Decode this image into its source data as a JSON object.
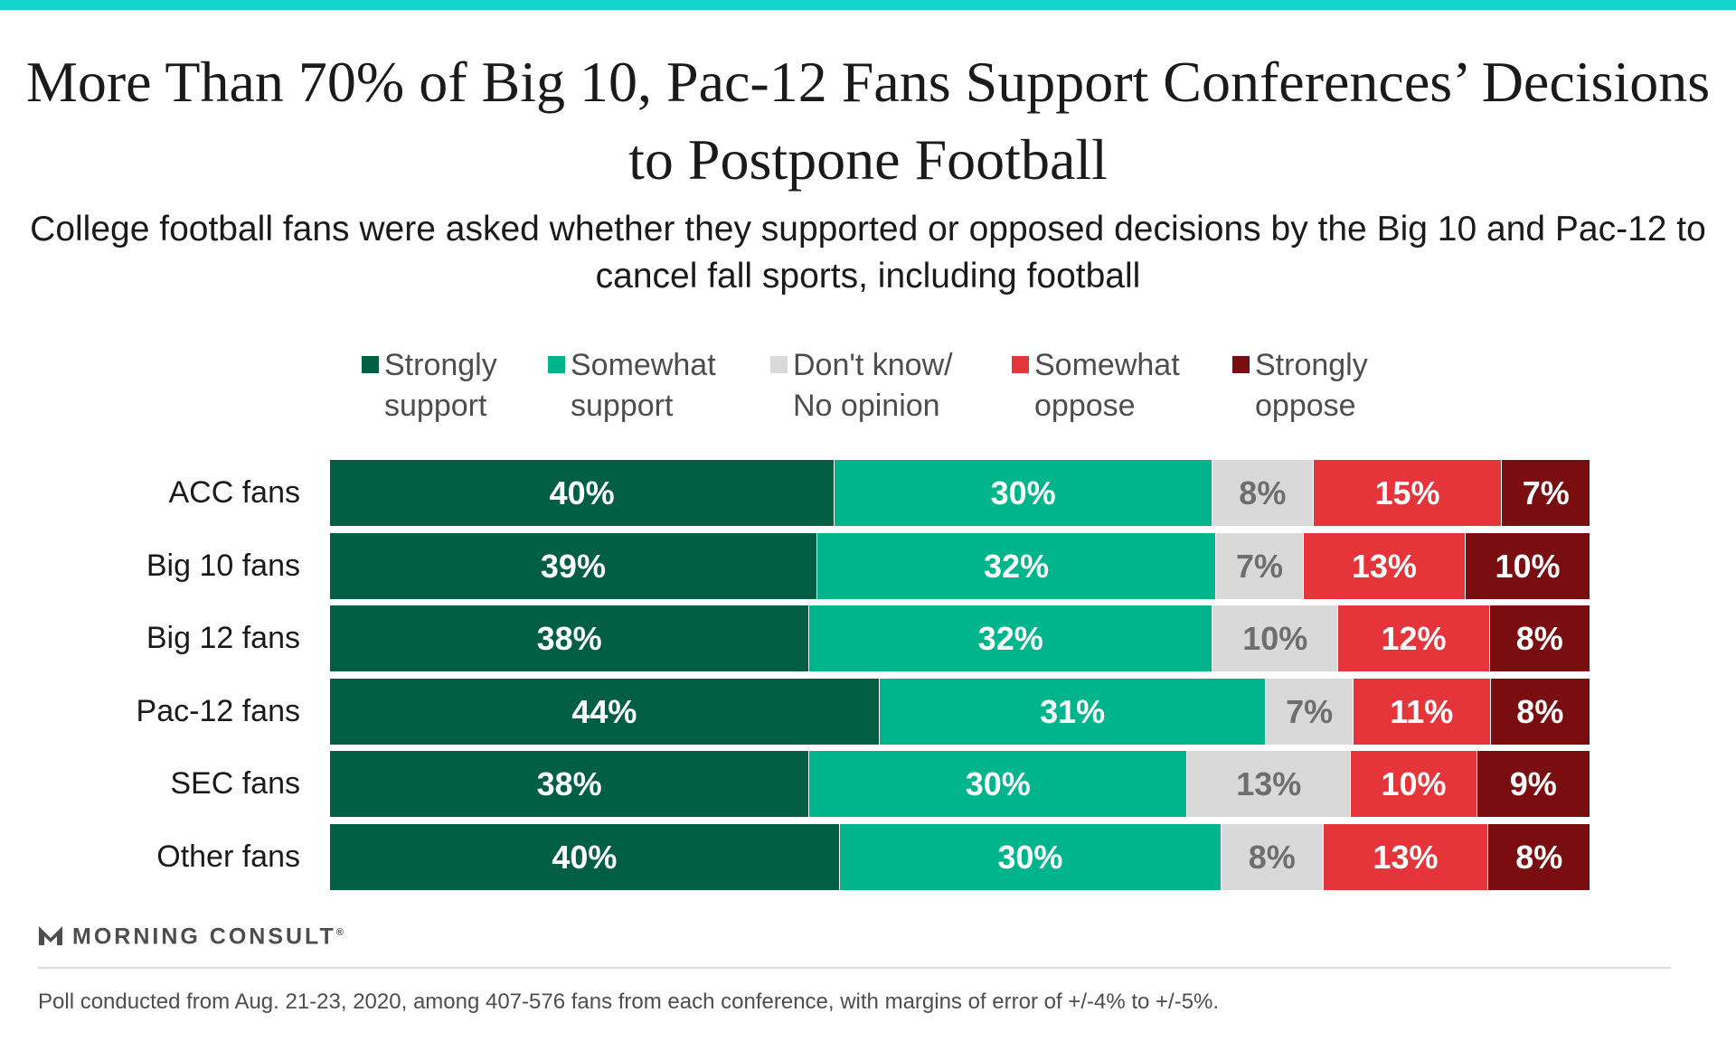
{
  "colors": {
    "accent_bar": "#12d3cf",
    "strongly_support": "#005e43",
    "somewhat_support": "#00b48c",
    "dont_know": "#d9d9d9",
    "somewhat_oppose": "#e5343a",
    "strongly_oppose": "#7a0d0f"
  },
  "title": "More Than 70% of Big 10, Pac-12 Fans Support Conferences’ Decisions to Postpone Football",
  "subtitle": "College football fans were asked whether they supported or opposed decisions by the Big 10 and Pac-12 to cancel fall sports, including football",
  "chart_data": {
    "type": "bar",
    "orientation": "horizontal",
    "stacked": true,
    "title": "More Than 70% of Big 10, Pac-12 Fans Support Conferences’ Decisions to Postpone Football",
    "subtitle": "College football fans were asked whether they supported or opposed decisions by the Big 10 and Pac-12 to cancel fall sports, including football",
    "xlabel": "",
    "ylabel": "",
    "unit": "%",
    "legend_position": "top",
    "grid": false,
    "categories": [
      "ACC fans",
      "Big 10 fans",
      "Big 12 fans",
      "Pac-12 fans",
      "SEC fans",
      "Other fans"
    ],
    "series": [
      {
        "name": "Strongly\nsupport",
        "color": "#005e43",
        "label_color": "#ffffff",
        "values": [
          40,
          39,
          38,
          44,
          38,
          40
        ]
      },
      {
        "name": "Somewhat\nsupport",
        "color": "#00b48c",
        "label_color": "#ffffff",
        "values": [
          30,
          32,
          32,
          31,
          30,
          30
        ]
      },
      {
        "name": "Don't know/\nNo opinion",
        "color": "#d9d9d9",
        "label_color": "#6e6e6e",
        "values": [
          8,
          7,
          10,
          7,
          13,
          8
        ]
      },
      {
        "name": "Somewhat\noppose",
        "color": "#e5343a",
        "label_color": "#ffffff",
        "values": [
          15,
          13,
          12,
          11,
          10,
          13
        ]
      },
      {
        "name": "Strongly\noppose",
        "color": "#7a0d0f",
        "label_color": "#ffffff",
        "values": [
          7,
          10,
          8,
          8,
          9,
          8
        ]
      }
    ]
  },
  "branding": {
    "logo_text": "MORNING CONSULT",
    "logo_mark": "®",
    "logo_icon": "morning-consult-m-icon"
  },
  "footnote": "Poll conducted from Aug. 21-23, 2020, among 407-576 fans from each conference, with margins of error of +/-4% to +/-5%."
}
